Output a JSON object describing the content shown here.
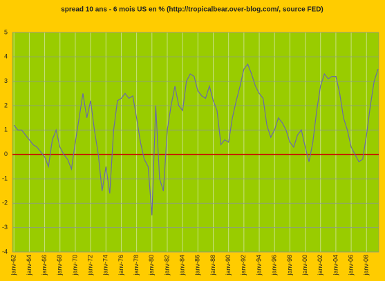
{
  "chart_data": {
    "type": "line",
    "title": "spread 10 ans - 6 mois US en % (http://tropicalbear.over-blog.com/, source FED)",
    "x": [
      1962,
      1962.5,
      1963,
      1963.5,
      1964,
      1964.5,
      1965,
      1965.5,
      1966,
      1966.5,
      1967,
      1967.5,
      1968,
      1968.5,
      1969,
      1969.5,
      1970,
      1970.5,
      1971,
      1971.5,
      1972,
      1972.5,
      1973,
      1973.5,
      1974,
      1974.5,
      1975,
      1975.5,
      1976,
      1976.5,
      1977,
      1977.5,
      1978,
      1978.5,
      1979,
      1979.5,
      1980,
      1980.5,
      1981,
      1981.5,
      1982,
      1982.5,
      1983,
      1983.5,
      1984,
      1984.5,
      1985,
      1985.5,
      1986,
      1986.5,
      1987,
      1987.5,
      1988,
      1988.5,
      1989,
      1989.5,
      1990,
      1990.5,
      1991,
      1991.5,
      1992,
      1992.5,
      1993,
      1993.5,
      1994,
      1994.5,
      1995,
      1995.5,
      1996,
      1996.5,
      1997,
      1997.5,
      1998,
      1998.5,
      1999,
      1999.5,
      2000,
      2000.5,
      2001,
      2001.5,
      2002,
      2002.5,
      2003,
      2003.5,
      2004,
      2004.5,
      2005,
      2005.5,
      2006,
      2006.5,
      2007,
      2007.5,
      2008,
      2008.5,
      2009,
      2009.5
    ],
    "series": [
      {
        "color": "#6a6aa8",
        "values": [
          1.2,
          1.0,
          1.0,
          0.8,
          0.6,
          0.4,
          0.3,
          0.1,
          -0.1,
          -0.5,
          0.6,
          1.0,
          0.3,
          0.0,
          -0.2,
          -0.6,
          0.5,
          1.5,
          2.5,
          1.5,
          2.2,
          1.0,
          0.0,
          -1.5,
          -0.5,
          -1.6,
          1.0,
          2.2,
          2.3,
          2.5,
          2.3,
          2.4,
          1.5,
          0.5,
          -0.2,
          -0.5,
          -2.5,
          2.0,
          -1.0,
          -1.5,
          1.0,
          2.0,
          2.8,
          2.0,
          1.8,
          3.0,
          3.3,
          3.2,
          2.6,
          2.4,
          2.3,
          2.8,
          2.2,
          1.8,
          0.4,
          0.6,
          0.5,
          1.5,
          2.2,
          2.8,
          3.5,
          3.7,
          3.3,
          2.8,
          2.5,
          2.3,
          1.2,
          0.7,
          1.0,
          1.5,
          1.3,
          1.0,
          0.5,
          0.3,
          0.8,
          1.0,
          0.3,
          -0.3,
          0.5,
          1.8,
          2.8,
          3.3,
          3.1,
          3.2,
          3.2,
          2.5,
          1.5,
          1.0,
          0.3,
          0.0,
          -0.3,
          -0.2,
          0.8,
          2.0,
          3.0,
          3.5
        ]
      }
    ],
    "xlim": [
      1961.8,
      2009.6
    ],
    "xticks": [
      {
        "value": 1962,
        "label": "janv-62"
      },
      {
        "value": 1964,
        "label": "janv-64"
      },
      {
        "value": 1966,
        "label": "janv-66"
      },
      {
        "value": 1968,
        "label": "janv-68"
      },
      {
        "value": 1970,
        "label": "janv-70"
      },
      {
        "value": 1972,
        "label": "janv-72"
      },
      {
        "value": 1974,
        "label": "janv-74"
      },
      {
        "value": 1976,
        "label": "janv-76"
      },
      {
        "value": 1978,
        "label": "janv-78"
      },
      {
        "value": 1980,
        "label": "janv-80"
      },
      {
        "value": 1982,
        "label": "janv-82"
      },
      {
        "value": 1984,
        "label": "janv-84"
      },
      {
        "value": 1986,
        "label": "janv-86"
      },
      {
        "value": 1988,
        "label": "janv-88"
      },
      {
        "value": 1990,
        "label": "janv-90"
      },
      {
        "value": 1992,
        "label": "janv-92"
      },
      {
        "value": 1994,
        "label": "janv-94"
      },
      {
        "value": 1996,
        "label": "janv-96"
      },
      {
        "value": 1998,
        "label": "janv-98"
      },
      {
        "value": 2000,
        "label": "janv-00"
      },
      {
        "value": 2002,
        "label": "janv-02"
      },
      {
        "value": 2004,
        "label": "janv-04"
      },
      {
        "value": 2006,
        "label": "janv-06"
      },
      {
        "value": 2008,
        "label": "janv-08"
      }
    ],
    "ylim": [
      -4,
      5
    ],
    "yticks": [
      -4,
      -3,
      -2,
      -1,
      0,
      1,
      2,
      3,
      4,
      5
    ],
    "grid": true,
    "plot_color": "#99cc00",
    "zero_line_color": "#cc0000"
  }
}
